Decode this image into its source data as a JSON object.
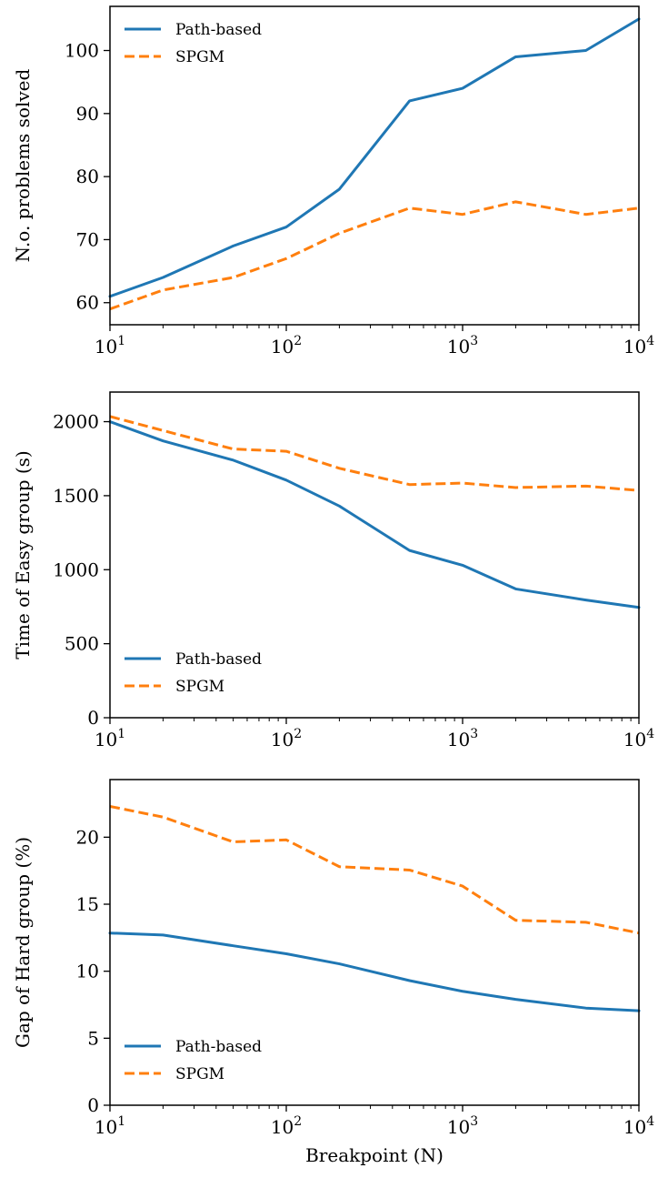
{
  "chart_data": [
    {
      "type": "line",
      "xscale": "log",
      "xlim": [
        10,
        10000
      ],
      "ylim": [
        56.5,
        107
      ],
      "x": [
        10,
        20,
        50,
        100,
        200,
        500,
        1000,
        2000,
        5000,
        10000
      ],
      "xticks": [
        10,
        100,
        1000,
        10000
      ],
      "xtick_labels": [
        {
          "base": "10",
          "exp": "1"
        },
        {
          "base": "10",
          "exp": "2"
        },
        {
          "base": "10",
          "exp": "3"
        },
        {
          "base": "10",
          "exp": "4"
        }
      ],
      "yticks": [
        60,
        70,
        80,
        90,
        100
      ],
      "ytick_labels": [
        "60",
        "70",
        "80",
        "90",
        "100"
      ],
      "ylabel": "N.o. problems solved",
      "xlabel": "",
      "legend_position": "top-left",
      "series": [
        {
          "name": "Path-based",
          "color": "#1f77b4",
          "style": "solid",
          "values": [
            61,
            64,
            69,
            72,
            78,
            92,
            94,
            99,
            100,
            105
          ]
        },
        {
          "name": "SPGM",
          "color": "#ff7f0e",
          "style": "dashed",
          "values": [
            59,
            62,
            64,
            67,
            71,
            75,
            74,
            76,
            74,
            75
          ]
        }
      ]
    },
    {
      "type": "line",
      "xscale": "log",
      "xlim": [
        10,
        10000
      ],
      "ylim": [
        0,
        2200
      ],
      "x": [
        10,
        20,
        50,
        100,
        200,
        500,
        1000,
        2000,
        5000,
        10000
      ],
      "xticks": [
        10,
        100,
        1000,
        10000
      ],
      "xtick_labels": [
        {
          "base": "10",
          "exp": "1"
        },
        {
          "base": "10",
          "exp": "2"
        },
        {
          "base": "10",
          "exp": "3"
        },
        {
          "base": "10",
          "exp": "4"
        }
      ],
      "yticks": [
        0,
        500,
        1000,
        1500,
        2000
      ],
      "ytick_labels": [
        "0",
        "500",
        "1000",
        "1500",
        "2000"
      ],
      "ylabel": "Time of Easy group (s)",
      "xlabel": "",
      "legend_position": "bottom-left",
      "series": [
        {
          "name": "Path-based",
          "color": "#1f77b4",
          "style": "solid",
          "values": [
            2000,
            1870,
            1740,
            1605,
            1430,
            1130,
            1030,
            870,
            795,
            745
          ]
        },
        {
          "name": "SPGM",
          "color": "#ff7f0e",
          "style": "dashed",
          "values": [
            2035,
            1940,
            1815,
            1800,
            1685,
            1575,
            1585,
            1555,
            1565,
            1535
          ]
        }
      ]
    },
    {
      "type": "line",
      "xscale": "log",
      "xlim": [
        10,
        10000
      ],
      "ylim": [
        0,
        24.3
      ],
      "x": [
        10,
        20,
        50,
        100,
        200,
        500,
        1000,
        2000,
        5000,
        10000
      ],
      "xticks": [
        10,
        100,
        1000,
        10000
      ],
      "xtick_labels": [
        {
          "base": "10",
          "exp": "1"
        },
        {
          "base": "10",
          "exp": "2"
        },
        {
          "base": "10",
          "exp": "3"
        },
        {
          "base": "10",
          "exp": "4"
        }
      ],
      "yticks": [
        0,
        5,
        10,
        15,
        20
      ],
      "ytick_labels": [
        "0",
        "5",
        "10",
        "15",
        "20"
      ],
      "ylabel": "Gap of Hard group (%)",
      "xlabel": "Breakpoint (N)",
      "legend_position": "bottom-left",
      "series": [
        {
          "name": "Path-based",
          "color": "#1f77b4",
          "style": "solid",
          "values": [
            12.85,
            12.7,
            11.9,
            11.3,
            10.55,
            9.3,
            8.5,
            7.9,
            7.25,
            7.05
          ]
        },
        {
          "name": "SPGM",
          "color": "#ff7f0e",
          "style": "dashed",
          "values": [
            22.3,
            21.5,
            19.65,
            19.8,
            17.8,
            17.55,
            16.35,
            13.8,
            13.65,
            12.85
          ]
        }
      ]
    }
  ]
}
